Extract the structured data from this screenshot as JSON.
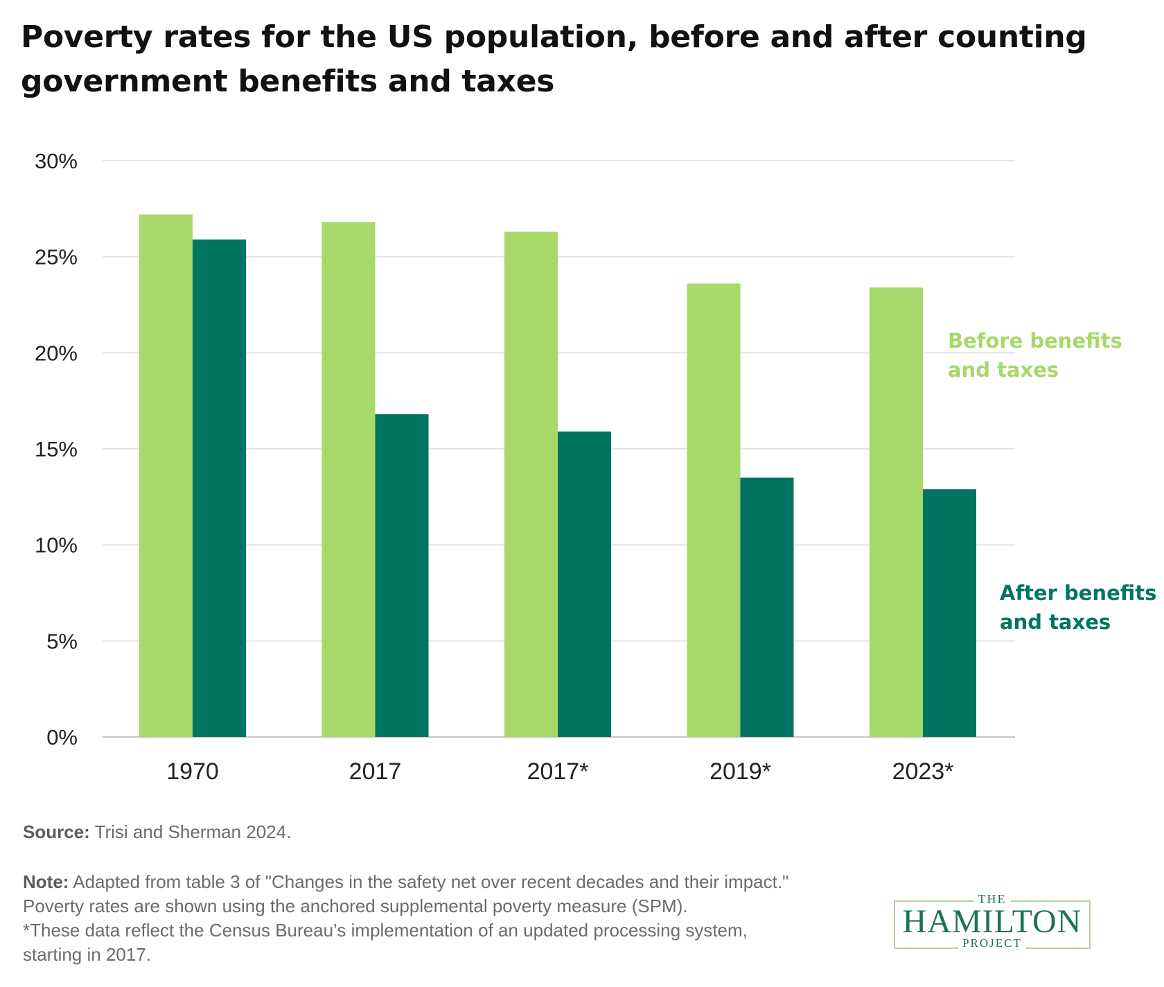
{
  "title": {
    "line1": "Poverty rates for the US population, before and after counting",
    "line2": "government benefits and taxes"
  },
  "colors": {
    "before": "#a6d86a",
    "after": "#007562",
    "grid": "#e3e3e3",
    "axis": "#c8c8c8"
  },
  "chart_data": {
    "type": "bar",
    "title": "Poverty rates for the US population, before and after counting government benefits and taxes",
    "categories": [
      "1970",
      "2017",
      "2017*",
      "2019*",
      "2023*"
    ],
    "series": [
      {
        "name": "Before benefits and taxes",
        "name_lines": [
          "Before benefits",
          "and taxes"
        ],
        "values": [
          27.2,
          26.8,
          26.3,
          23.6,
          23.4
        ]
      },
      {
        "name": "After benefits and taxes",
        "name_lines": [
          "After benefits",
          "and taxes"
        ],
        "values": [
          25.9,
          16.8,
          15.9,
          13.5,
          12.9
        ]
      }
    ],
    "ylim": [
      0,
      30
    ],
    "yticks": [
      0,
      5,
      10,
      15,
      20,
      25,
      30
    ],
    "ytick_labels": [
      "0%",
      "5%",
      "10%",
      "15%",
      "20%",
      "25%",
      "30%"
    ],
    "xlabel": "",
    "ylabel": "",
    "grid": true,
    "legend": "direct labels at right of last bars"
  },
  "source": {
    "label": "Source:",
    "text": "Trisi and Sherman 2024."
  },
  "note": {
    "label": "Note:",
    "line1": "Adapted from table 3 of \"Changes in the safety net over recent decades and their impact.\"",
    "line2": "Poverty rates are shown using the anchored supplemental poverty measure (SPM).",
    "line3": "*These data reflect the Census Bureau’s implementation of an updated processing system,",
    "line4": "starting in 2017."
  },
  "logo": {
    "top": "THE",
    "name": "HAMILTON",
    "bottom": "PROJECT"
  }
}
